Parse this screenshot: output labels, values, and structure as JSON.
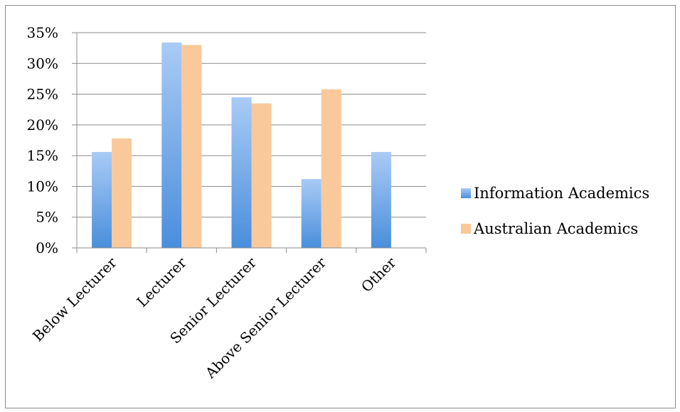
{
  "chart_data": {
    "type": "bar",
    "categories": [
      "Below Lecturer",
      "Lecturer",
      "Senior Lecturer",
      "Above Senior Lecturer",
      "Other"
    ],
    "series": [
      {
        "name": "Information Academics",
        "values": [
          15.6,
          33.4,
          24.5,
          11.2,
          15.6
        ]
      },
      {
        "name": "Australian Academics",
        "values": [
          17.8,
          33.0,
          23.5,
          25.8,
          null
        ]
      }
    ],
    "ylim": [
      0,
      35
    ],
    "yticks": [
      "0%",
      "5%",
      "10%",
      "15%",
      "20%",
      "25%",
      "30%",
      "35%"
    ],
    "grid": true,
    "legend_position": "right",
    "colors": {
      "Information Academics": [
        "#a9cbf6",
        "#4a8edb"
      ],
      "Australian Academics": "#f9c99b",
      "grid": "#8c8c8c",
      "axis": "#8c8c8c"
    }
  }
}
